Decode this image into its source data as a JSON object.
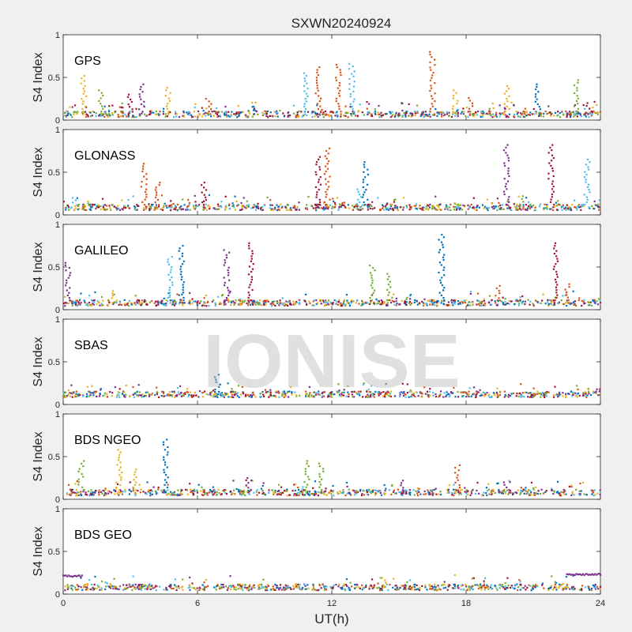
{
  "title": "SXWN20240924",
  "watermark": "IONISE",
  "xlabel": "UT(h)",
  "ylabel": "S4 Index",
  "x_ticks": [
    "0",
    "6",
    "12",
    "18",
    "24"
  ],
  "y_ticks": [
    "0",
    "0.5",
    "1"
  ],
  "series_colors": [
    "#0072bd",
    "#d95319",
    "#edb120",
    "#7e2f8e",
    "#77ac30",
    "#4dbeee",
    "#a2142f"
  ],
  "chart_data": [
    {
      "type": "scatter",
      "label": "GPS",
      "xlim": [
        0,
        24
      ],
      "ylim": [
        0,
        1
      ],
      "baseline": 0.07,
      "spikes": [
        {
          "x": 0.9,
          "y": 0.52,
          "c": 2
        },
        {
          "x": 1.7,
          "y": 0.35,
          "c": 4
        },
        {
          "x": 3.0,
          "y": 0.3,
          "c": 6
        },
        {
          "x": 3.5,
          "y": 0.42,
          "c": 3
        },
        {
          "x": 4.7,
          "y": 0.38,
          "c": 2
        },
        {
          "x": 6.5,
          "y": 0.25,
          "c": 1
        },
        {
          "x": 10.8,
          "y": 0.55,
          "c": 5
        },
        {
          "x": 11.4,
          "y": 0.62,
          "c": 1
        },
        {
          "x": 12.3,
          "y": 0.65,
          "c": 1
        },
        {
          "x": 12.9,
          "y": 0.66,
          "c": 5
        },
        {
          "x": 16.5,
          "y": 0.8,
          "c": 1
        },
        {
          "x": 17.5,
          "y": 0.35,
          "c": 2
        },
        {
          "x": 18.2,
          "y": 0.26,
          "c": 1
        },
        {
          "x": 19.8,
          "y": 0.4,
          "c": 2
        },
        {
          "x": 21.2,
          "y": 0.42,
          "c": 0
        },
        {
          "x": 22.9,
          "y": 0.47,
          "c": 4
        },
        {
          "x": 23.5,
          "y": 0.2,
          "c": 6
        }
      ]
    },
    {
      "type": "scatter",
      "label": "GLONASS",
      "xlim": [
        0,
        24
      ],
      "ylim": [
        0,
        1
      ],
      "baseline": 0.09,
      "spikes": [
        {
          "x": 0.5,
          "y": 0.2,
          "c": 5
        },
        {
          "x": 3.6,
          "y": 0.6,
          "c": 1
        },
        {
          "x": 4.2,
          "y": 0.38,
          "c": 1
        },
        {
          "x": 6.3,
          "y": 0.38,
          "c": 6
        },
        {
          "x": 11.4,
          "y": 0.68,
          "c": 6
        },
        {
          "x": 11.8,
          "y": 0.78,
          "c": 1
        },
        {
          "x": 13.5,
          "y": 0.62,
          "c": 0
        },
        {
          "x": 13.2,
          "y": 0.3,
          "c": 5
        },
        {
          "x": 19.8,
          "y": 0.82,
          "c": 3
        },
        {
          "x": 21.8,
          "y": 0.82,
          "c": 6
        },
        {
          "x": 23.4,
          "y": 0.65,
          "c": 5
        },
        {
          "x": 20.5,
          "y": 0.22,
          "c": 4
        }
      ]
    },
    {
      "type": "scatter",
      "label": "GALILEO",
      "xlim": [
        0,
        24
      ],
      "ylim": [
        0,
        1
      ],
      "baseline": 0.08,
      "spikes": [
        {
          "x": 0.2,
          "y": 0.55,
          "c": 3
        },
        {
          "x": 2.3,
          "y": 0.22,
          "c": 2
        },
        {
          "x": 4.8,
          "y": 0.62,
          "c": 5
        },
        {
          "x": 5.3,
          "y": 0.75,
          "c": 0
        },
        {
          "x": 7.3,
          "y": 0.7,
          "c": 3
        },
        {
          "x": 8.4,
          "y": 0.78,
          "c": 6
        },
        {
          "x": 13.8,
          "y": 0.52,
          "c": 4
        },
        {
          "x": 14.6,
          "y": 0.42,
          "c": 4
        },
        {
          "x": 16.9,
          "y": 0.88,
          "c": 0
        },
        {
          "x": 19.4,
          "y": 0.28,
          "c": 1
        },
        {
          "x": 22.0,
          "y": 0.78,
          "c": 6
        },
        {
          "x": 22.5,
          "y": 0.3,
          "c": 1
        }
      ]
    },
    {
      "type": "scatter",
      "label": "SBAS",
      "xlim": [
        0,
        24
      ],
      "ylim": [
        0,
        1
      ],
      "baseline": 0.12,
      "spikes": [
        {
          "x": 6.9,
          "y": 0.35,
          "c": 0
        }
      ]
    },
    {
      "type": "scatter",
      "label": "BDS NGEO",
      "xlim": [
        0,
        24
      ],
      "ylim": [
        0,
        1
      ],
      "baseline": 0.08,
      "spikes": [
        {
          "x": 0.8,
          "y": 0.45,
          "c": 4
        },
        {
          "x": 2.5,
          "y": 0.58,
          "c": 2
        },
        {
          "x": 3.2,
          "y": 0.35,
          "c": 2
        },
        {
          "x": 4.6,
          "y": 0.7,
          "c": 0
        },
        {
          "x": 8.3,
          "y": 0.25,
          "c": 3
        },
        {
          "x": 10.9,
          "y": 0.45,
          "c": 4
        },
        {
          "x": 11.5,
          "y": 0.42,
          "c": 4
        },
        {
          "x": 15.2,
          "y": 0.22,
          "c": 3
        },
        {
          "x": 17.6,
          "y": 0.4,
          "c": 1
        },
        {
          "x": 19.8,
          "y": 0.2,
          "c": 3
        }
      ]
    },
    {
      "type": "scatter",
      "label": "BDS GEO",
      "xlim": [
        0,
        24
      ],
      "ylim": [
        0,
        1
      ],
      "baseline": 0.08,
      "spikes": [
        {
          "x": 1.0,
          "y": 0.12,
          "c": 2
        },
        {
          "x": 2.2,
          "y": 0.12,
          "c": 2
        },
        {
          "x": 10.5,
          "y": 0.12,
          "c": 2
        },
        {
          "x": 14.3,
          "y": 0.19,
          "c": 2
        },
        {
          "x": 22.3,
          "y": 0.12,
          "c": 2
        }
      ],
      "segments": [
        {
          "x0": 0.0,
          "x1": 0.9,
          "y": 0.21,
          "c": 3
        },
        {
          "x0": 22.5,
          "x1": 24.0,
          "y": 0.23,
          "c": 3
        }
      ]
    }
  ]
}
